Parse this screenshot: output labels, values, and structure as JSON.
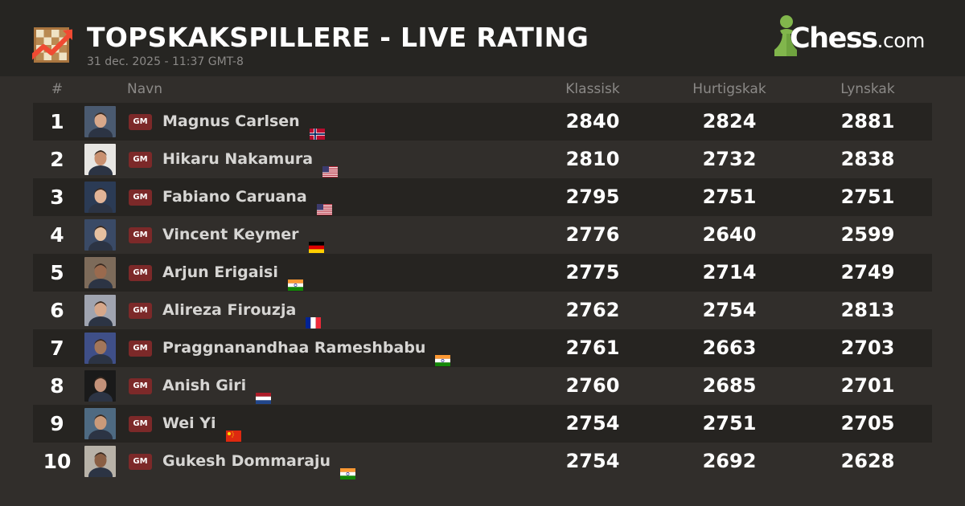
{
  "header": {
    "title": "TOPSKAKSPILLERE - LIVE RATING",
    "timestamp": "31 dec. 2025 - 11:37 GMT-8",
    "logo_icon": "chessboard-trend-up-icon",
    "brand": {
      "main": "Chess",
      "suffix": ".com",
      "icon": "pawn-icon",
      "color": "#81b64c"
    }
  },
  "columns": {
    "rank": "#",
    "name": "Navn",
    "classical": "Klassisk",
    "rapid": "Hurtigskak",
    "blitz": "Lynskak"
  },
  "colors": {
    "background": "#312e2b",
    "header_background": "#262522",
    "row_dark": "#262421",
    "title_badge": "#7c2929",
    "muted_text": "#8b8987"
  },
  "players": [
    {
      "rank": "1",
      "title": "GM",
      "name": "Magnus Carlsen",
      "flag": "NO",
      "classical": "2840",
      "rapid": "2824",
      "blitz": "2881"
    },
    {
      "rank": "2",
      "title": "GM",
      "name": "Hikaru Nakamura",
      "flag": "US",
      "classical": "2810",
      "rapid": "2732",
      "blitz": "2838"
    },
    {
      "rank": "3",
      "title": "GM",
      "name": "Fabiano Caruana",
      "flag": "US",
      "classical": "2795",
      "rapid": "2751",
      "blitz": "2751"
    },
    {
      "rank": "4",
      "title": "GM",
      "name": "Vincent Keymer",
      "flag": "DE",
      "classical": "2776",
      "rapid": "2640",
      "blitz": "2599"
    },
    {
      "rank": "5",
      "title": "GM",
      "name": "Arjun Erigaisi",
      "flag": "IN",
      "classical": "2775",
      "rapid": "2714",
      "blitz": "2749"
    },
    {
      "rank": "6",
      "title": "GM",
      "name": "Alireza Firouzja",
      "flag": "FR",
      "classical": "2762",
      "rapid": "2754",
      "blitz": "2813"
    },
    {
      "rank": "7",
      "title": "GM",
      "name": "Praggnanandhaa Rameshbabu",
      "flag": "IN",
      "classical": "2761",
      "rapid": "2663",
      "blitz": "2703"
    },
    {
      "rank": "8",
      "title": "GM",
      "name": "Anish Giri",
      "flag": "NL",
      "classical": "2760",
      "rapid": "2685",
      "blitz": "2701"
    },
    {
      "rank": "9",
      "title": "GM",
      "name": "Wei Yi",
      "flag": "CN",
      "classical": "2754",
      "rapid": "2751",
      "blitz": "2705"
    },
    {
      "rank": "10",
      "title": "GM",
      "name": "Gukesh Dommaraju",
      "flag": "IN",
      "classical": "2754",
      "rapid": "2692",
      "blitz": "2628"
    }
  ]
}
